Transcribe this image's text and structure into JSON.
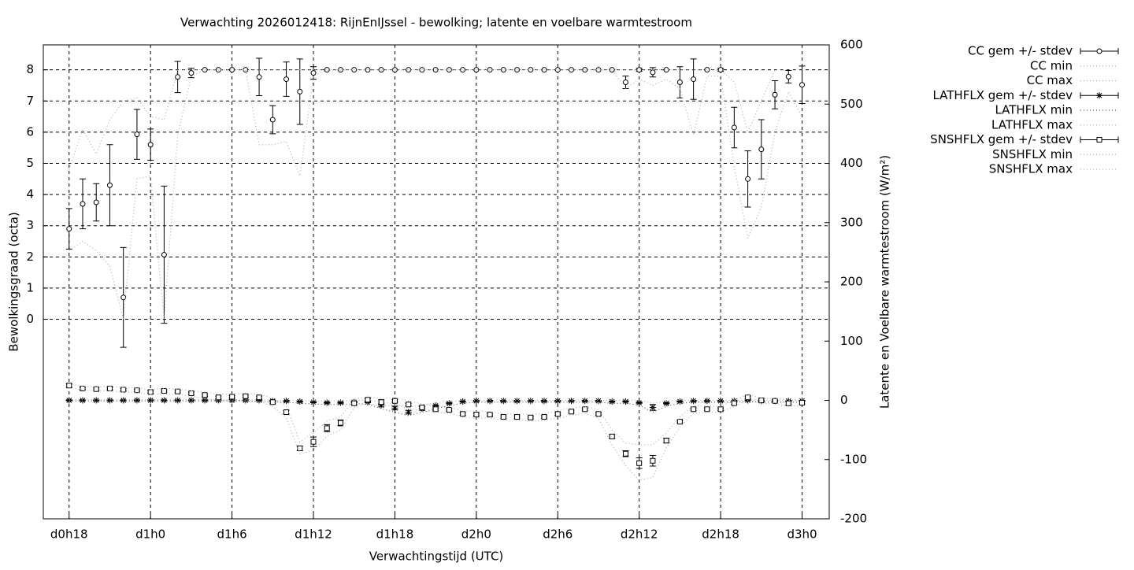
{
  "chart_data": {
    "type": "errorline",
    "title": "Verwachting 2026012418: RijnEnIJssel - bewolking; latente en voelbare warmtestroom",
    "xlabel": "Verwachtingstijd (UTC)",
    "ylabel": "Bewolkingsgraad (octa)",
    "y2label": "Latente en Voelbare warmtestroom (W/m²)",
    "grid": true,
    "legend": "outside-right",
    "xlim": [
      -1.9,
      56
    ],
    "xticks": [
      {
        "value": 0,
        "label": "d0h18"
      },
      {
        "value": 6,
        "label": "d1h0"
      },
      {
        "value": 12,
        "label": "d1h6"
      },
      {
        "value": 18,
        "label": "d1h12"
      },
      {
        "value": 24,
        "label": "d1h18"
      },
      {
        "value": 30,
        "label": "d2h0"
      },
      {
        "value": 36,
        "label": "d2h6"
      },
      {
        "value": 42,
        "label": "d2h12"
      },
      {
        "value": 48,
        "label": "d2h18"
      },
      {
        "value": 54,
        "label": "d3h0"
      }
    ],
    "ylim": [
      -6.4,
      8.8
    ],
    "yticks": [
      0,
      1,
      2,
      3,
      4,
      5,
      6,
      7,
      8
    ],
    "y2lim": [
      -200,
      600
    ],
    "y2ticks": [
      -200,
      -100,
      0,
      100,
      200,
      300,
      400,
      500,
      600
    ],
    "x": [
      0,
      1,
      2,
      3,
      4,
      5,
      6,
      7,
      8,
      9,
      10,
      11,
      12,
      13,
      14,
      15,
      16,
      17,
      18,
      19,
      20,
      21,
      22,
      23,
      24,
      25,
      26,
      27,
      28,
      29,
      30,
      31,
      32,
      33,
      34,
      35,
      36,
      37,
      38,
      39,
      40,
      41,
      42,
      43,
      44,
      45,
      46,
      47,
      48,
      49,
      50,
      51,
      52,
      53,
      54
    ],
    "series": [
      {
        "name": "CC gem +/- stdev",
        "color": "#000000",
        "marker": "circle",
        "axis": "y",
        "values": [
          2.9,
          3.7,
          3.75,
          4.3,
          0.7,
          5.93,
          5.6,
          2.07,
          7.77,
          7.9,
          8,
          8,
          8,
          8,
          7.77,
          6.4,
          7.7,
          7.3,
          7.9,
          8,
          8,
          8,
          8,
          8,
          8,
          8,
          8,
          8,
          8,
          8,
          8,
          8,
          8,
          8,
          8,
          8,
          8,
          8,
          8,
          8,
          8,
          7.6,
          8,
          7.92,
          8,
          7.6,
          7.7,
          8,
          8,
          6.15,
          4.5,
          5.45,
          7.2,
          7.78,
          7.52
        ],
        "errors": [
          0.65,
          0.8,
          0.6,
          1.3,
          1.6,
          0.8,
          0.5,
          2.2,
          0.5,
          0.15,
          0,
          0,
          0,
          0,
          0.6,
          0.45,
          0.55,
          1.05,
          0.2,
          0,
          0,
          0,
          0,
          0,
          0,
          0,
          0,
          0,
          0,
          0,
          0,
          0,
          0,
          0,
          0,
          0,
          0,
          0,
          0,
          0,
          0,
          0.2,
          0.05,
          0.15,
          0,
          0.5,
          0.65,
          0,
          0.05,
          0.65,
          0.9,
          0.95,
          0.45,
          0.2,
          0.6
        ]
      },
      {
        "name": "CC min",
        "color": "#b0b0b0",
        "dash": "dotted",
        "axis": "y",
        "values": [
          2.2,
          2.5,
          2.2,
          1.7,
          0,
          4.5,
          4.6,
          0,
          5.9,
          7.8,
          8,
          8,
          8,
          8,
          5.6,
          5.6,
          5.7,
          4.6,
          7.8,
          8,
          8,
          8,
          8,
          8,
          8,
          8,
          8,
          8,
          8,
          8,
          8,
          8,
          8,
          8,
          8,
          8,
          8,
          8,
          8,
          8,
          8,
          7.4,
          7.7,
          7.5,
          7.7,
          7.4,
          5.9,
          7.8,
          7.8,
          4.9,
          2.6,
          3.6,
          6,
          7.3,
          6.5
        ]
      },
      {
        "name": "CC max",
        "color": "#b0b0b0",
        "dash": "dotted",
        "axis": "y",
        "values": [
          4.8,
          6.1,
          5.3,
          6.4,
          7,
          7.1,
          6.5,
          6.4,
          8,
          8,
          8,
          8,
          8,
          8,
          8,
          8,
          8,
          8,
          8,
          8,
          8,
          8,
          8,
          8,
          8,
          8,
          8,
          8,
          8,
          8,
          8,
          8,
          8,
          8,
          8,
          8,
          8,
          8,
          8,
          8,
          8,
          8,
          8,
          8,
          8,
          8,
          8,
          8,
          8,
          7.6,
          6,
          7,
          8,
          8,
          8
        ]
      },
      {
        "name": "LATHFLX gem +/- stdev",
        "color": "#000000",
        "marker": "star",
        "axis": "y2",
        "values": [
          0,
          0,
          0,
          0,
          0,
          0,
          0,
          0,
          0,
          0,
          0,
          0,
          0,
          0,
          0,
          -1,
          -1,
          -2,
          -3,
          -4,
          -4,
          -3,
          -3,
          -8,
          -13,
          -20,
          -14,
          -9,
          -5,
          -2,
          -1,
          -1,
          -1,
          -1,
          -1,
          -1,
          -1,
          -1,
          -1,
          -1,
          -2,
          -2,
          -4,
          -12,
          -5,
          -2,
          -1,
          -1,
          -1,
          -1,
          0,
          -1,
          -1,
          -1,
          -1
        ],
        "errors": [
          1,
          1,
          1,
          1,
          1,
          1,
          1,
          1,
          1,
          1,
          1,
          1,
          1,
          1,
          1,
          1,
          1,
          1,
          1,
          1,
          1,
          1,
          1,
          3,
          3,
          3,
          3,
          1,
          1,
          1,
          1,
          1,
          1,
          1,
          1,
          1,
          1,
          1,
          1,
          1,
          1,
          1,
          1,
          5,
          1,
          1,
          1,
          1,
          1,
          1,
          1,
          1,
          1,
          1,
          1
        ]
      },
      {
        "name": "LATHFLX min",
        "color": "#555555",
        "dash": "dotted",
        "axis": "y2",
        "values": [
          -1,
          -1,
          -1,
          -1,
          -1,
          -1,
          -1,
          -1,
          -1,
          -1,
          -1,
          -1,
          -1,
          -1,
          -2,
          -3,
          -3,
          -5,
          -6,
          -7,
          -7,
          -6,
          -6,
          -14,
          -20,
          -26,
          -20,
          -14,
          -9,
          -5,
          -3,
          -3,
          -3,
          -3,
          -3,
          -3,
          -3,
          -3,
          -3,
          -3,
          -5,
          -5,
          -8,
          -20,
          -10,
          -5,
          -3,
          -3,
          -3,
          -3,
          -2,
          -3,
          -3,
          -3,
          -3
        ]
      },
      {
        "name": "LATHFLX max",
        "color": "#b0b0b0",
        "dash": "dotted",
        "axis": "y2",
        "values": [
          1,
          1,
          1,
          1,
          1,
          1,
          1,
          1,
          1,
          1,
          1,
          1,
          1,
          1,
          1,
          0,
          0,
          0,
          -1,
          -1,
          -1,
          0,
          0,
          -3,
          -6,
          -12,
          -8,
          -4,
          -2,
          0,
          0,
          0,
          0,
          0,
          0,
          0,
          0,
          0,
          0,
          0,
          0,
          0,
          0,
          -5,
          -1,
          0,
          0,
          0,
          0,
          0,
          1,
          0,
          0,
          0,
          0
        ]
      },
      {
        "name": "SNSHFLX gem +/- stdev",
        "color": "#000000",
        "marker": "square",
        "axis": "y2",
        "values": [
          25,
          20,
          19,
          20,
          18,
          17,
          14,
          16,
          15,
          12,
          9,
          5,
          6,
          7,
          5,
          -3,
          -20,
          -81,
          -70,
          -47,
          -38,
          -5,
          1,
          -3,
          -1,
          -7,
          -12,
          -15,
          -16,
          -23,
          -24,
          -24,
          -28,
          -28,
          -29,
          -28,
          -23,
          -19,
          -15,
          -23,
          -61,
          -90,
          -106,
          -102,
          -68,
          -36,
          -15,
          -15,
          -15,
          -5,
          5,
          0,
          -1,
          -5,
          -4
        ],
        "errors": [
          3,
          2,
          2,
          2,
          2,
          2,
          2,
          2,
          2,
          2,
          2,
          2,
          2,
          2,
          2,
          2,
          3,
          4,
          8,
          6,
          5,
          2,
          2,
          4,
          2,
          2,
          2,
          2,
          2,
          2,
          2,
          2,
          2,
          2,
          2,
          2,
          2,
          2,
          2,
          2,
          3,
          5,
          9,
          9,
          4,
          2,
          2,
          2,
          2,
          2,
          2,
          2,
          2,
          3,
          2
        ]
      },
      {
        "name": "SNSHFLX min",
        "color": "#b0b0b0",
        "dash": "dotted",
        "axis": "y2",
        "values": [
          22,
          17,
          16,
          16,
          14,
          13,
          10,
          11,
          10,
          7,
          3,
          0,
          0,
          0,
          -2,
          -10,
          -30,
          -90,
          -85,
          -60,
          -50,
          -12,
          -5,
          -10,
          -8,
          -13,
          -18,
          -20,
          -22,
          -28,
          -30,
          -30,
          -33,
          -33,
          -35,
          -34,
          -30,
          -25,
          -22,
          -30,
          -75,
          -110,
          -135,
          -130,
          -80,
          -45,
          -22,
          -20,
          -20,
          -10,
          0,
          -5,
          -6,
          -10,
          -9
        ]
      },
      {
        "name": "SNSHFLX max",
        "color": "#b0b0b0",
        "dash": "dotted",
        "axis": "y2",
        "values": [
          28,
          24,
          23,
          24,
          22,
          21,
          18,
          20,
          19,
          16,
          14,
          10,
          11,
          12,
          10,
          4,
          -10,
          -70,
          -55,
          -35,
          -28,
          2,
          6,
          3,
          5,
          -1,
          -6,
          -10,
          -11,
          -18,
          -18,
          -19,
          -23,
          -23,
          -24,
          -22,
          -17,
          -13,
          -10,
          -16,
          -50,
          -72,
          -75,
          -75,
          -55,
          -28,
          -9,
          -10,
          -10,
          0,
          10,
          4,
          3,
          0,
          1
        ]
      }
    ]
  }
}
